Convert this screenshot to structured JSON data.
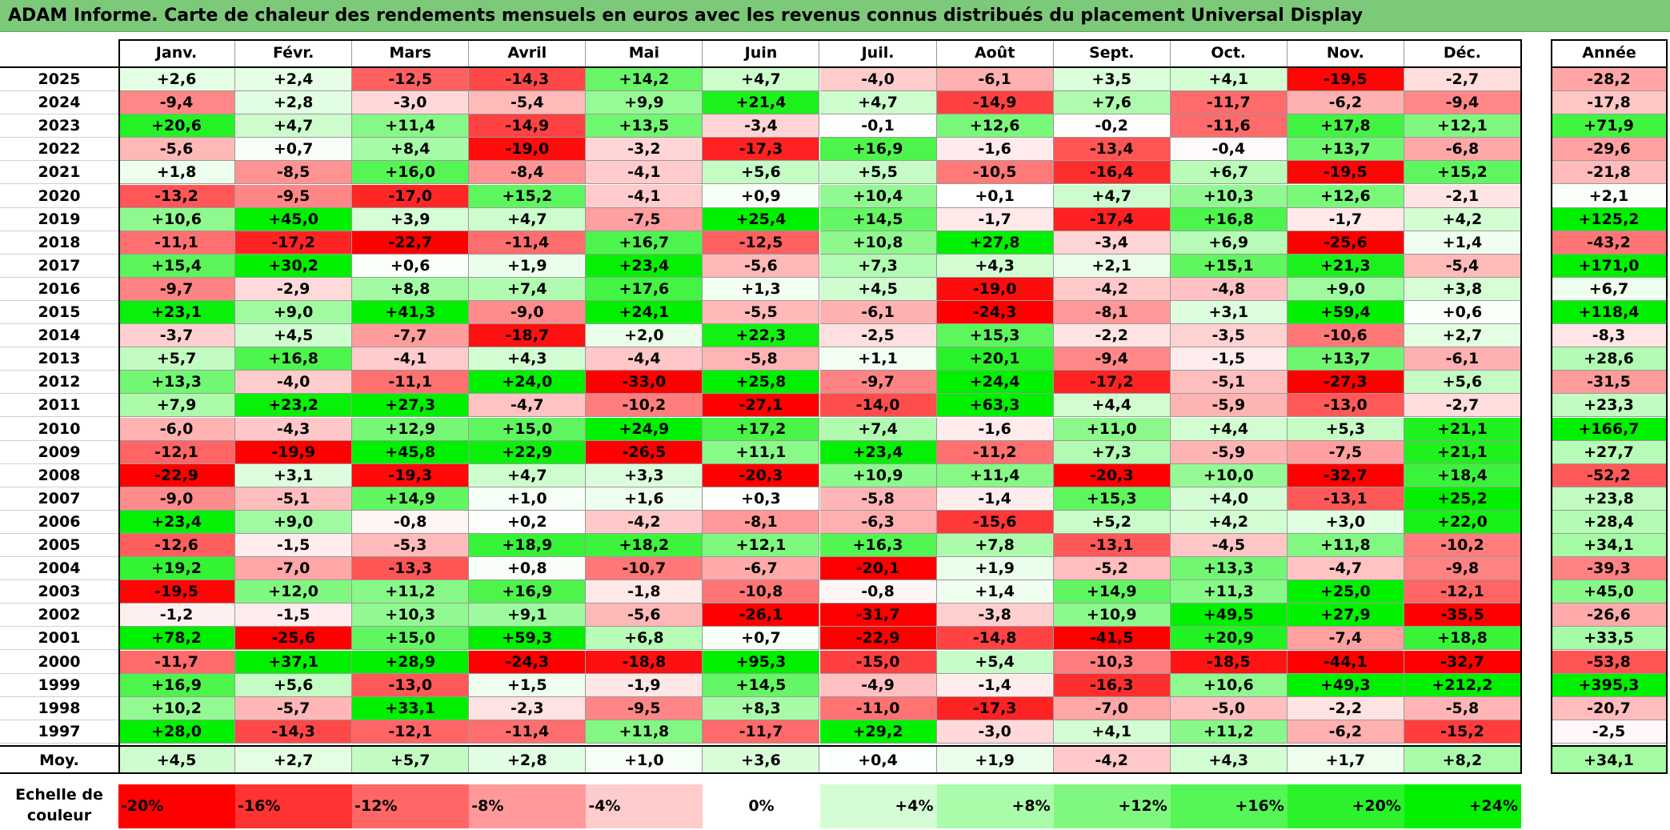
{
  "title": "ADAM Informe. Carte de chaleur des rendements mensuels en euros avec les revenus connus distribués du placement Universal Display",
  "chart_data": {
    "type": "heatmap",
    "title": "ADAM Informe. Carte de chaleur des rendements mensuels en euros avec les revenus connus distribués du placement Universal Display",
    "columns": [
      "Janv.",
      "Févr.",
      "Mars",
      "Avril",
      "Mai",
      "Juin",
      "Juil.",
      "Août",
      "Sept.",
      "Oct.",
      "Nov.",
      "Déc."
    ],
    "annual_label": "Année",
    "rows": [
      {
        "year": "2025",
        "values": [
          "+2,6",
          "+2,4",
          "-12,5",
          "-14,3",
          "+14,2",
          "+4,7",
          "-4,0",
          "-6,1",
          "+3,5",
          "+4,1",
          "-19,5",
          "-2,7"
        ],
        "annual": "-28,2"
      },
      {
        "year": "2024",
        "values": [
          "-9,4",
          "+2,8",
          "-3,0",
          "-5,4",
          "+9,9",
          "+21,4",
          "+4,7",
          "-14,9",
          "+7,6",
          "-11,7",
          "-6,2",
          "-9,4"
        ],
        "annual": "-17,8"
      },
      {
        "year": "2023",
        "values": [
          "+20,6",
          "+4,7",
          "+11,4",
          "-14,9",
          "+13,5",
          "-3,4",
          "-0,1",
          "+12,6",
          "-0,2",
          "-11,6",
          "+17,8",
          "+12,1"
        ],
        "annual": "+71,9"
      },
      {
        "year": "2022",
        "values": [
          "-5,6",
          "+0,7",
          "+8,4",
          "-19,0",
          "-3,2",
          "-17,3",
          "+16,9",
          "-1,6",
          "-13,4",
          "-0,4",
          "+13,7",
          "-6,8"
        ],
        "annual": "-29,6"
      },
      {
        "year": "2021",
        "values": [
          "+1,8",
          "-8,5",
          "+16,0",
          "-8,4",
          "-4,1",
          "+5,6",
          "+5,5",
          "-10,5",
          "-16,4",
          "+6,7",
          "-19,5",
          "+15,2"
        ],
        "annual": "-21,8"
      },
      {
        "year": "2020",
        "values": [
          "-13,2",
          "-9,5",
          "-17,0",
          "+15,2",
          "-4,1",
          "+0,9",
          "+10,4",
          "+0,1",
          "+4,7",
          "+10,3",
          "+12,6",
          "-2,1"
        ],
        "annual": "+2,1"
      },
      {
        "year": "2019",
        "values": [
          "+10,6",
          "+45,0",
          "+3,9",
          "+4,7",
          "-7,5",
          "+25,4",
          "+14,5",
          "-1,7",
          "-17,4",
          "+16,8",
          "-1,7",
          "+4,2"
        ],
        "annual": "+125,2"
      },
      {
        "year": "2018",
        "values": [
          "-11,1",
          "-17,2",
          "-22,7",
          "-11,4",
          "+16,7",
          "-12,5",
          "+10,8",
          "+27,8",
          "-3,4",
          "+6,9",
          "-25,6",
          "+1,4"
        ],
        "annual": "-43,2"
      },
      {
        "year": "2017",
        "values": [
          "+15,4",
          "+30,2",
          "+0,6",
          "+1,9",
          "+23,4",
          "-5,6",
          "+7,3",
          "+4,3",
          "+2,1",
          "+15,1",
          "+21,3",
          "-5,4"
        ],
        "annual": "+171,0"
      },
      {
        "year": "2016",
        "values": [
          "-9,7",
          "-2,9",
          "+8,8",
          "+7,4",
          "+17,6",
          "+1,3",
          "+4,5",
          "-19,0",
          "-4,2",
          "-4,8",
          "+9,0",
          "+3,8"
        ],
        "annual": "+6,7"
      },
      {
        "year": "2015",
        "values": [
          "+23,1",
          "+9,0",
          "+41,3",
          "-9,0",
          "+24,1",
          "-5,5",
          "-6,1",
          "-24,3",
          "-8,1",
          "+3,1",
          "+59,4",
          "+0,6"
        ],
        "annual": "+118,4"
      },
      {
        "year": "2014",
        "values": [
          "-3,7",
          "+4,5",
          "-7,7",
          "-18,7",
          "+2,0",
          "+22,3",
          "-2,5",
          "+15,3",
          "-2,2",
          "-3,5",
          "-10,6",
          "+2,7"
        ],
        "annual": "-8,3"
      },
      {
        "year": "2013",
        "values": [
          "+5,7",
          "+16,8",
          "-4,1",
          "+4,3",
          "-4,4",
          "-5,8",
          "+1,1",
          "+20,1",
          "-9,4",
          "-1,5",
          "+13,7",
          "-6,1"
        ],
        "annual": "+28,6"
      },
      {
        "year": "2012",
        "values": [
          "+13,3",
          "-4,0",
          "-11,1",
          "+24,0",
          "-33,0",
          "+25,8",
          "-9,7",
          "+24,4",
          "-17,2",
          "-5,1",
          "-27,3",
          "+5,6"
        ],
        "annual": "-31,5"
      },
      {
        "year": "2011",
        "values": [
          "+7,9",
          "+23,2",
          "+27,3",
          "-4,7",
          "-10,2",
          "-27,1",
          "-14,0",
          "+63,3",
          "+4,4",
          "-5,9",
          "-13,0",
          "-2,7"
        ],
        "annual": "+23,3"
      },
      {
        "year": "2010",
        "values": [
          "-6,0",
          "-4,3",
          "+12,9",
          "+15,0",
          "+24,9",
          "+17,2",
          "+7,4",
          "-1,6",
          "+11,0",
          "+4,4",
          "+5,3",
          "+21,1"
        ],
        "annual": "+166,7"
      },
      {
        "year": "2009",
        "values": [
          "-12,1",
          "-19,9",
          "+45,8",
          "+22,9",
          "-26,5",
          "+11,1",
          "+23,4",
          "-11,2",
          "+7,3",
          "-5,9",
          "-7,5",
          "+21,1"
        ],
        "annual": "+27,7"
      },
      {
        "year": "2008",
        "values": [
          "-22,9",
          "+3,1",
          "-19,3",
          "+4,7",
          "+3,3",
          "-20,3",
          "+10,9",
          "+11,4",
          "-20,3",
          "+10,0",
          "-32,7",
          "+18,4"
        ],
        "annual": "-52,2"
      },
      {
        "year": "2007",
        "values": [
          "-9,0",
          "-5,1",
          "+14,9",
          "+1,0",
          "+1,6",
          "+0,3",
          "-5,8",
          "-1,4",
          "+15,3",
          "+4,0",
          "-13,1",
          "+25,2"
        ],
        "annual": "+23,8"
      },
      {
        "year": "2006",
        "values": [
          "+23,4",
          "+9,0",
          "-0,8",
          "+0,2",
          "-4,2",
          "-8,1",
          "-6,3",
          "-15,6",
          "+5,2",
          "+4,2",
          "+3,0",
          "+22,0"
        ],
        "annual": "+28,4"
      },
      {
        "year": "2005",
        "values": [
          "-12,6",
          "-1,5",
          "-5,3",
          "+18,9",
          "+18,2",
          "+12,1",
          "+16,3",
          "+7,8",
          "-13,1",
          "-4,5",
          "+11,8",
          "-10,2"
        ],
        "annual": "+34,1"
      },
      {
        "year": "2004",
        "values": [
          "+19,2",
          "-7,0",
          "-13,3",
          "+0,8",
          "-10,7",
          "-6,7",
          "-20,1",
          "+1,9",
          "-5,2",
          "+13,3",
          "-4,7",
          "-9,8"
        ],
        "annual": "-39,3"
      },
      {
        "year": "2003",
        "values": [
          "-19,5",
          "+12,0",
          "+11,2",
          "+16,9",
          "-1,8",
          "-10,8",
          "-0,8",
          "+1,4",
          "+14,9",
          "+11,3",
          "+25,0",
          "-12,1"
        ],
        "annual": "+45,0"
      },
      {
        "year": "2002",
        "values": [
          "-1,2",
          "-1,5",
          "+10,3",
          "+9,1",
          "-5,6",
          "-26,1",
          "-31,7",
          "-3,8",
          "+10,9",
          "+49,5",
          "+27,9",
          "-35,5"
        ],
        "annual": "-26,6"
      },
      {
        "year": "2001",
        "values": [
          "+78,2",
          "-25,6",
          "+15,0",
          "+59,3",
          "+6,8",
          "+0,7",
          "-22,9",
          "-14,8",
          "-41,5",
          "+20,9",
          "-7,4",
          "+18,8"
        ],
        "annual": "+33,5"
      },
      {
        "year": "2000",
        "values": [
          "-11,7",
          "+37,1",
          "+28,9",
          "-24,3",
          "-18,8",
          "+95,3",
          "-15,0",
          "+5,4",
          "-10,3",
          "-18,5",
          "-44,1",
          "-32,7"
        ],
        "annual": "-53,8"
      },
      {
        "year": "1999",
        "values": [
          "+16,9",
          "+5,6",
          "-13,0",
          "+1,5",
          "-1,9",
          "+14,5",
          "-4,9",
          "-1,4",
          "-16,3",
          "+10,6",
          "+49,3",
          "+212,2"
        ],
        "annual": "+395,3"
      },
      {
        "year": "1998",
        "values": [
          "+10,2",
          "-5,7",
          "+33,1",
          "-2,3",
          "-9,5",
          "+8,3",
          "-11,0",
          "-17,3",
          "-7,0",
          "-5,0",
          "-2,2",
          "-5,8"
        ],
        "annual": "-20,7"
      },
      {
        "year": "1997",
        "values": [
          "+28,0",
          "-14,3",
          "-12,1",
          "-11,4",
          "+11,8",
          "-11,7",
          "+29,2",
          "-3,0",
          "+4,1",
          "+11,2",
          "-6,2",
          "-15,2"
        ],
        "annual": "-2,5"
      }
    ],
    "average": {
      "label": "Moy.",
      "values": [
        "+4,5",
        "+2,7",
        "+5,7",
        "+2,8",
        "+1,0",
        "+3,6",
        "+0,4",
        "+1,9",
        "-4,2",
        "+4,3",
        "+1,7",
        "+8,2"
      ],
      "annual": "+34,1"
    },
    "scale": {
      "label": "Echelle de couleur",
      "stops": [
        {
          "label": "-20%",
          "value": -20,
          "color": "#ff0000"
        },
        {
          "label": "-16%",
          "value": -16,
          "color": "#ff3333"
        },
        {
          "label": "-12%",
          "value": -12,
          "color": "#ff6666"
        },
        {
          "label": "-8%",
          "value": -8,
          "color": "#ff9999"
        },
        {
          "label": "-4%",
          "value": -4,
          "color": "#ffcccc"
        },
        {
          "label": "0%",
          "value": 0,
          "color": "#ffffff"
        },
        {
          "label": "+4%",
          "value": 4,
          "color": "#d5fdd5"
        },
        {
          "label": "+8%",
          "value": 8,
          "color": "#aafbaa"
        },
        {
          "label": "+12%",
          "value": 12,
          "color": "#80f880"
        },
        {
          "label": "+16%",
          "value": 16,
          "color": "#55f555"
        },
        {
          "label": "+20%",
          "value": 20,
          "color": "#2bf22b"
        },
        {
          "label": "+24%",
          "value": 24,
          "color": "#00f000"
        }
      ]
    }
  }
}
